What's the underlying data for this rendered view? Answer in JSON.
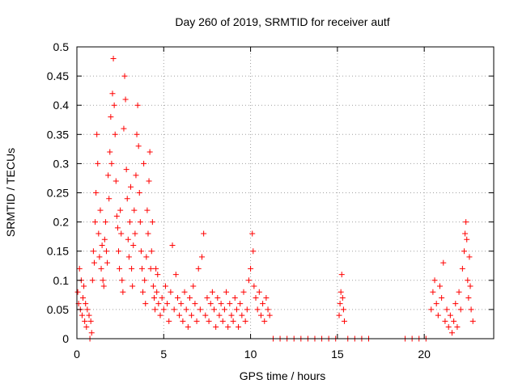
{
  "chart_data": {
    "type": "scatter",
    "title": "Day 260 of 2019, SRMTID for receiver autf",
    "xlabel": "GPS time / hours",
    "ylabel": "SRMTID / TECUs",
    "xlim": [
      0,
      24
    ],
    "ylim": [
      0,
      0.5
    ],
    "xticks": [
      0,
      5,
      10,
      15,
      20
    ],
    "xtick_labels": [
      "0",
      "5",
      "10",
      "15",
      "20"
    ],
    "yticks": [
      0,
      0.05,
      0.1,
      0.15,
      0.2,
      0.25,
      0.3,
      0.35,
      0.4,
      0.45,
      0.5
    ],
    "ytick_labels": [
      "0",
      "0.05",
      "0.1",
      "0.15",
      "0.2",
      "0.25",
      "0.3",
      "0.35",
      "0.4",
      "0.45",
      "0.5"
    ],
    "grid": true,
    "marker": "+",
    "color": "#ff0000",
    "series": [
      {
        "name": "SRMTID",
        "points": [
          [
            0.05,
            0.08
          ],
          [
            0.1,
            0.06
          ],
          [
            0.15,
            0.12
          ],
          [
            0.2,
            0.05
          ],
          [
            0.25,
            0.1
          ],
          [
            0.3,
            0.04
          ],
          [
            0.35,
            0.07
          ],
          [
            0.4,
            0.09
          ],
          [
            0.45,
            0.03
          ],
          [
            0.5,
            0.06
          ],
          [
            0.55,
            0.02
          ],
          [
            0.6,
            0.05
          ],
          [
            0.7,
            0.04
          ],
          [
            0.75,
            0.0
          ],
          [
            0.8,
            0.03
          ],
          [
            0.85,
            0.01
          ],
          [
            0.9,
            0.1
          ],
          [
            0.95,
            0.15
          ],
          [
            1.0,
            0.13
          ],
          [
            1.05,
            0.2
          ],
          [
            1.1,
            0.25
          ],
          [
            1.15,
            0.35
          ],
          [
            1.2,
            0.3
          ],
          [
            1.25,
            0.18
          ],
          [
            1.3,
            0.14
          ],
          [
            1.35,
            0.22
          ],
          [
            1.4,
            0.12
          ],
          [
            1.45,
            0.16
          ],
          [
            1.5,
            0.1
          ],
          [
            1.55,
            0.09
          ],
          [
            1.6,
            0.17
          ],
          [
            1.65,
            0.2
          ],
          [
            1.7,
            0.15
          ],
          [
            1.75,
            0.13
          ],
          [
            1.8,
            0.28
          ],
          [
            1.85,
            0.24
          ],
          [
            1.9,
            0.32
          ],
          [
            1.95,
            0.38
          ],
          [
            2.0,
            0.3
          ],
          [
            2.05,
            0.42
          ],
          [
            2.1,
            0.48
          ],
          [
            2.15,
            0.4
          ],
          [
            2.2,
            0.35
          ],
          [
            2.25,
            0.27
          ],
          [
            2.3,
            0.21
          ],
          [
            2.35,
            0.19
          ],
          [
            2.4,
            0.15
          ],
          [
            2.45,
            0.12
          ],
          [
            2.5,
            0.22
          ],
          [
            2.55,
            0.18
          ],
          [
            2.6,
            0.1
          ],
          [
            2.65,
            0.08
          ],
          [
            2.7,
            0.36
          ],
          [
            2.75,
            0.45
          ],
          [
            2.8,
            0.41
          ],
          [
            2.85,
            0.29
          ],
          [
            2.9,
            0.24
          ],
          [
            2.95,
            0.17
          ],
          [
            3.0,
            0.14
          ],
          [
            3.05,
            0.2
          ],
          [
            3.1,
            0.26
          ],
          [
            3.15,
            0.12
          ],
          [
            3.2,
            0.09
          ],
          [
            3.25,
            0.16
          ],
          [
            3.3,
            0.22
          ],
          [
            3.35,
            0.18
          ],
          [
            3.4,
            0.28
          ],
          [
            3.45,
            0.35
          ],
          [
            3.5,
            0.4
          ],
          [
            3.55,
            0.33
          ],
          [
            3.6,
            0.25
          ],
          [
            3.65,
            0.2
          ],
          [
            3.7,
            0.15
          ],
          [
            3.75,
            0.12
          ],
          [
            3.8,
            0.08
          ],
          [
            3.85,
            0.3
          ],
          [
            3.9,
            0.1
          ],
          [
            3.95,
            0.06
          ],
          [
            4.0,
            0.14
          ],
          [
            4.05,
            0.22
          ],
          [
            4.1,
            0.18
          ],
          [
            4.15,
            0.27
          ],
          [
            4.2,
            0.32
          ],
          [
            4.25,
            0.12
          ],
          [
            4.3,
            0.15
          ],
          [
            4.35,
            0.2
          ],
          [
            4.4,
            0.09
          ],
          [
            4.45,
            0.07
          ],
          [
            4.5,
            0.05
          ],
          [
            4.55,
            0.12
          ],
          [
            4.6,
            0.08
          ],
          [
            4.65,
            0.11
          ],
          [
            4.7,
            0.06
          ],
          [
            4.8,
            0.04
          ],
          [
            4.9,
            0.07
          ],
          [
            5.0,
            0.05
          ],
          [
            5.1,
            0.09
          ],
          [
            5.2,
            0.06
          ],
          [
            5.3,
            0.03
          ],
          [
            5.4,
            0.08
          ],
          [
            5.5,
            0.16
          ],
          [
            5.6,
            0.05
          ],
          [
            5.7,
            0.11
          ],
          [
            5.8,
            0.07
          ],
          [
            5.9,
            0.04
          ],
          [
            6.0,
            0.06
          ],
          [
            6.1,
            0.03
          ],
          [
            6.2,
            0.08
          ],
          [
            6.3,
            0.05
          ],
          [
            6.4,
            0.02
          ],
          [
            6.5,
            0.07
          ],
          [
            6.6,
            0.04
          ],
          [
            6.7,
            0.09
          ],
          [
            6.8,
            0.06
          ],
          [
            6.9,
            0.03
          ],
          [
            7.0,
            0.12
          ],
          [
            7.1,
            0.05
          ],
          [
            7.2,
            0.14
          ],
          [
            7.3,
            0.18
          ],
          [
            7.4,
            0.04
          ],
          [
            7.5,
            0.07
          ],
          [
            7.6,
            0.03
          ],
          [
            7.7,
            0.06
          ],
          [
            7.8,
            0.08
          ],
          [
            7.9,
            0.05
          ],
          [
            8.0,
            0.02
          ],
          [
            8.1,
            0.07
          ],
          [
            8.2,
            0.04
          ],
          [
            8.3,
            0.06
          ],
          [
            8.4,
            0.03
          ],
          [
            8.5,
            0.05
          ],
          [
            8.6,
            0.08
          ],
          [
            8.7,
            0.02
          ],
          [
            8.8,
            0.06
          ],
          [
            8.9,
            0.04
          ],
          [
            9.0,
            0.03
          ],
          [
            9.1,
            0.07
          ],
          [
            9.2,
            0.05
          ],
          [
            9.3,
            0.02
          ],
          [
            9.4,
            0.06
          ],
          [
            9.5,
            0.04
          ],
          [
            9.6,
            0.08
          ],
          [
            9.7,
            0.03
          ],
          [
            9.8,
            0.05
          ],
          [
            9.9,
            0.1
          ],
          [
            10.0,
            0.12
          ],
          [
            10.1,
            0.18
          ],
          [
            10.15,
            0.15
          ],
          [
            10.2,
            0.09
          ],
          [
            10.3,
            0.07
          ],
          [
            10.4,
            0.05
          ],
          [
            10.5,
            0.08
          ],
          [
            10.6,
            0.04
          ],
          [
            10.7,
            0.06
          ],
          [
            10.8,
            0.03
          ],
          [
            10.9,
            0.07
          ],
          [
            11.0,
            0.05
          ],
          [
            11.1,
            0.04
          ],
          [
            11.3,
            0.0
          ],
          [
            11.7,
            0.0
          ],
          [
            12.1,
            0.0
          ],
          [
            12.5,
            0.0
          ],
          [
            12.9,
            0.0
          ],
          [
            13.3,
            0.0
          ],
          [
            13.7,
            0.0
          ],
          [
            14.1,
            0.0
          ],
          [
            14.5,
            0.0
          ],
          [
            14.9,
            0.0
          ],
          [
            15.1,
            0.04
          ],
          [
            15.15,
            0.06
          ],
          [
            15.2,
            0.08
          ],
          [
            15.25,
            0.11
          ],
          [
            15.3,
            0.07
          ],
          [
            15.35,
            0.05
          ],
          [
            15.4,
            0.03
          ],
          [
            15.6,
            0.0
          ],
          [
            16.0,
            0.0
          ],
          [
            16.4,
            0.0
          ],
          [
            16.8,
            0.0
          ],
          [
            18.9,
            0.0
          ],
          [
            19.3,
            0.0
          ],
          [
            19.7,
            0.0
          ],
          [
            20.1,
            0.0
          ],
          [
            20.4,
            0.05
          ],
          [
            20.5,
            0.08
          ],
          [
            20.6,
            0.1
          ],
          [
            20.7,
            0.06
          ],
          [
            20.8,
            0.04
          ],
          [
            20.9,
            0.09
          ],
          [
            21.0,
            0.07
          ],
          [
            21.1,
            0.13
          ],
          [
            21.2,
            0.03
          ],
          [
            21.3,
            0.05
          ],
          [
            21.4,
            0.02
          ],
          [
            21.5,
            0.04
          ],
          [
            21.6,
            0.01
          ],
          [
            21.7,
            0.03
          ],
          [
            21.8,
            0.06
          ],
          [
            21.9,
            0.02
          ],
          [
            22.0,
            0.08
          ],
          [
            22.1,
            0.05
          ],
          [
            22.2,
            0.12
          ],
          [
            22.3,
            0.15
          ],
          [
            22.35,
            0.18
          ],
          [
            22.4,
            0.2
          ],
          [
            22.45,
            0.17
          ],
          [
            22.5,
            0.1
          ],
          [
            22.55,
            0.07
          ],
          [
            22.6,
            0.14
          ],
          [
            22.65,
            0.09
          ],
          [
            22.7,
            0.05
          ],
          [
            22.8,
            0.03
          ]
        ]
      }
    ]
  }
}
